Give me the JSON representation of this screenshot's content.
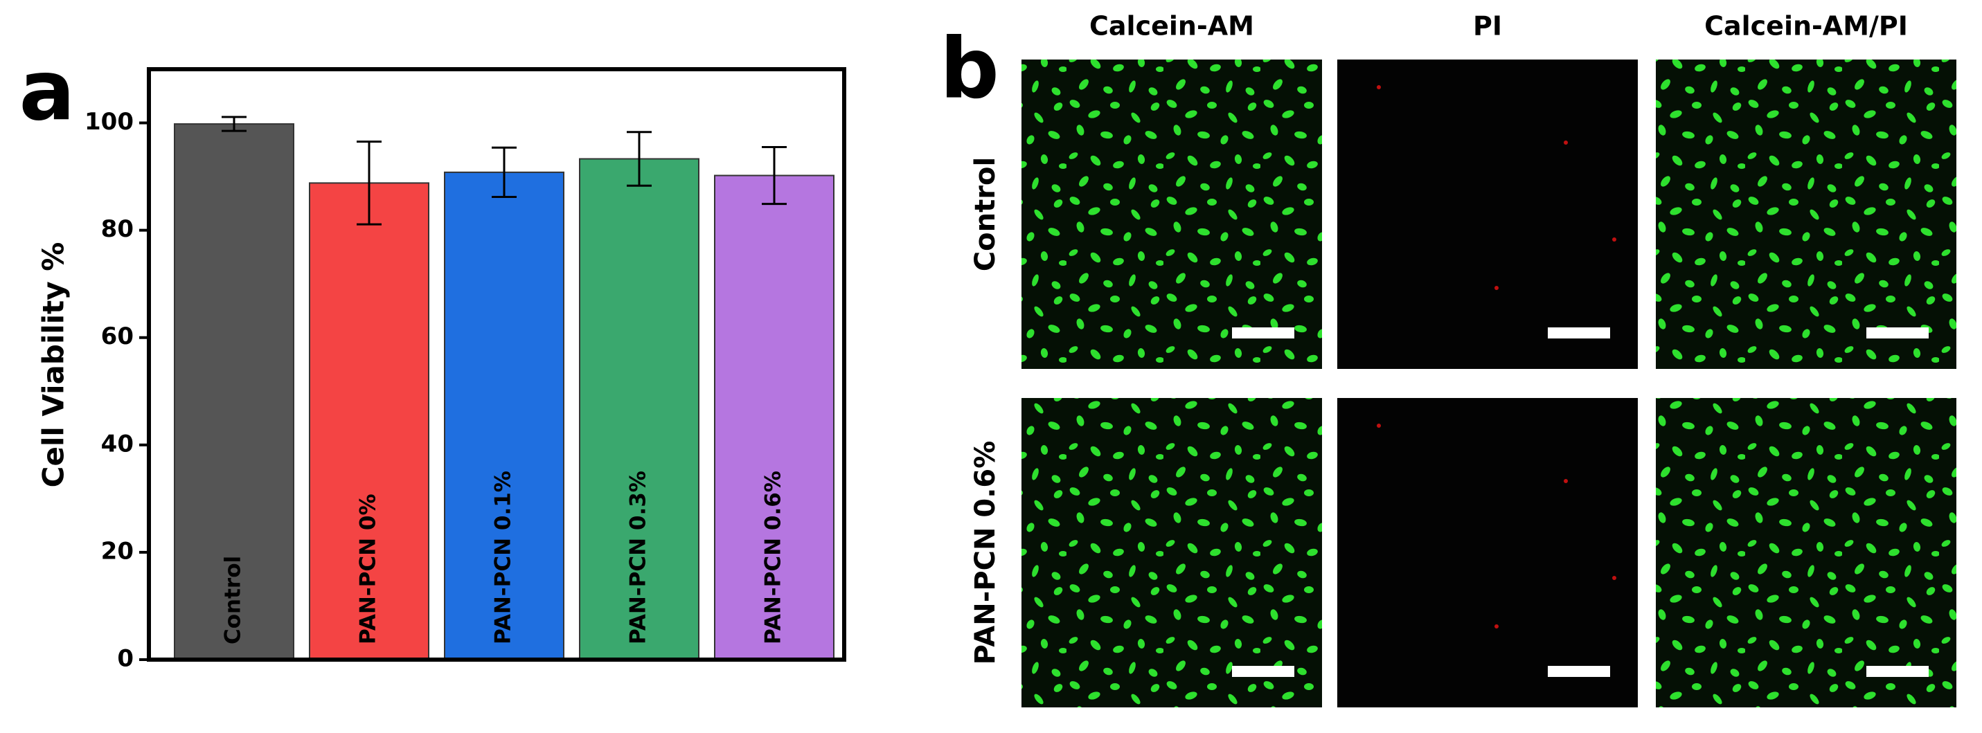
{
  "chart_data": {
    "type": "bar",
    "panel_label": "a",
    "ylabel": "Cell Viability %",
    "categories": [
      "Control",
      "PAN-PCN 0%",
      "PAN-PCN 0.1%",
      "PAN-PCN 0.3%",
      "PAN-PCN 0.6%"
    ],
    "values": [
      99.8,
      88.8,
      90.8,
      93.3,
      90.2
    ],
    "errors": [
      1.3,
      7.7,
      4.6,
      5.0,
      5.3
    ],
    "colors": [
      "#555555",
      "#f44444",
      "#1f6fe0",
      "#3aa86e",
      "#b576e0"
    ],
    "ylim": [
      0,
      110
    ],
    "yticks": [
      0,
      20,
      40,
      60,
      80,
      100
    ]
  },
  "images": {
    "panel_label": "b",
    "columns": [
      "Calcein-AM",
      "PI",
      "Calcein-AM/PI"
    ],
    "rows": [
      "Control",
      "PAN-PCN 0.6%"
    ]
  }
}
